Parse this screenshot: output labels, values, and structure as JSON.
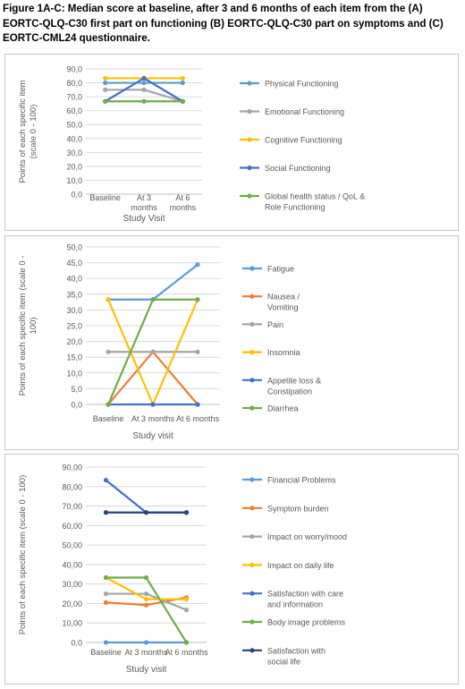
{
  "caption": "Figure 1A-C: Median score at baseline, after 3 and 6 months of each item from the (A) EORTC-QLQ-C30 first part on functioning (B) EORTC-QLQ-C30 part on symptoms and (C) EORTC-CML24 questionnaire.",
  "colors": {
    "light_blue": "#5b9bd5",
    "orange": "#ed7d31",
    "gray": "#a5a5a5",
    "yellow": "#ffc000",
    "blue": "#4472c4",
    "green": "#70ad47",
    "dark_blue": "#264478"
  },
  "chart_data": [
    {
      "type": "line",
      "title": "",
      "xlabel": "Study Visit",
      "ylabel": "Points of each specific item (scale 0 - 100)",
      "ylim": [
        0,
        90
      ],
      "yticks": [
        "0,0",
        "10,0",
        "20,0",
        "30,0",
        "40,0",
        "50,0",
        "60,0",
        "70,0",
        "80,0",
        "90,0"
      ],
      "categories": [
        "Baseline",
        "At 3 months",
        "At 6 months"
      ],
      "legend_position": "right",
      "grid": true,
      "series": [
        {
          "name": "Physical Functioning",
          "color": "#5b9bd5",
          "values": [
            80,
            80,
            80
          ]
        },
        {
          "name": "Emotional Functioning",
          "color": "#a5a5a5",
          "values": [
            75,
            75,
            66.7
          ]
        },
        {
          "name": "Cognitive Functioning",
          "color": "#ffc000",
          "values": [
            83.3,
            83.3,
            83.3
          ]
        },
        {
          "name": "Social Functioning",
          "color": "#4472c4",
          "values": [
            66.7,
            83.3,
            66.7
          ]
        },
        {
          "name": "Global health status / QoL & Role Functioning",
          "color": "#70ad47",
          "values": [
            66.7,
            66.7,
            66.7
          ]
        }
      ]
    },
    {
      "type": "line",
      "title": "",
      "xlabel": "Study visit",
      "ylabel": "Points of each specific item (scale 0 - 100)",
      "ylim": [
        0,
        50
      ],
      "yticks": [
        "0,0",
        "5,0",
        "10,0",
        "15,0",
        "20,0",
        "25,0",
        "30,0",
        "35,0",
        "40,0",
        "45,0",
        "50,0"
      ],
      "categories": [
        "Baseline",
        "At 3 months",
        "At 6 months"
      ],
      "legend_position": "right",
      "grid": true,
      "series": [
        {
          "name": "Fatigue",
          "color": "#5b9bd5",
          "values": [
            33.3,
            33.3,
            44.4
          ]
        },
        {
          "name": "Nausea / Vomiting",
          "color": "#ed7d31",
          "values": [
            0,
            16.7,
            0
          ]
        },
        {
          "name": "Pain",
          "color": "#a5a5a5",
          "values": [
            16.7,
            16.7,
            16.7
          ]
        },
        {
          "name": "Insomnia",
          "color": "#ffc000",
          "values": [
            33.3,
            0,
            33.3
          ]
        },
        {
          "name": "Appetite loss & Constipation",
          "color": "#4472c4",
          "values": [
            0,
            0,
            0
          ]
        },
        {
          "name": "Diarrhea",
          "color": "#70ad47",
          "values": [
            0,
            33.3,
            33.3
          ]
        }
      ]
    },
    {
      "type": "line",
      "title": "",
      "xlabel": "Study visit",
      "ylabel": "Points of each specific item (scale 0 - 100)",
      "ylim": [
        0,
        90
      ],
      "yticks": [
        "0,0",
        "10,00",
        "20,00",
        "30,00",
        "40,00",
        "50,00",
        "60,00",
        "70,00",
        "80,00",
        "90,00"
      ],
      "categories": [
        "Baseline",
        "At 3 months",
        "At 6 months"
      ],
      "legend_position": "right",
      "grid": true,
      "series": [
        {
          "name": "Financial Problems",
          "color": "#5b9bd5",
          "values": [
            0,
            0,
            0
          ]
        },
        {
          "name": "Symptom burden",
          "color": "#ed7d31",
          "values": [
            20.5,
            19.2,
            23.1
          ]
        },
        {
          "name": "Impact on worry/mood",
          "color": "#a5a5a5",
          "values": [
            25,
            25,
            16.7
          ]
        },
        {
          "name": "Impact on daily life",
          "color": "#ffc000",
          "values": [
            33.3,
            22.2,
            22.2
          ]
        },
        {
          "name": "Satisfaction with care and information",
          "color": "#4472c4",
          "values": [
            83.3,
            66.7,
            66.7
          ]
        },
        {
          "name": "Body image problems",
          "color": "#70ad47",
          "values": [
            33.3,
            33.3,
            0
          ]
        },
        {
          "name": "Satisfaction with social life",
          "color": "#264478",
          "values": [
            66.7,
            66.7,
            66.7
          ]
        }
      ]
    }
  ]
}
